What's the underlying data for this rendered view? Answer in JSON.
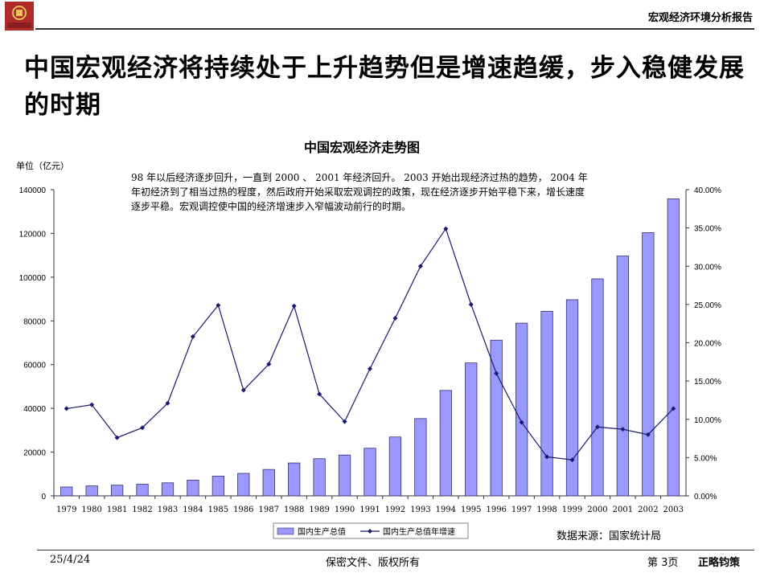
{
  "header": {
    "report_title": "宏观经济环境分析报告",
    "logo_text": "浙商银行"
  },
  "headline": "中国宏观经济将持续处于上升趋势但是增速趋缓，步入稳健发展的时期",
  "chart_data": {
    "type": "bar",
    "title": "中国宏观经济走势图",
    "unit_label": "单位（亿元）",
    "note": "98 年以后经济逐步回升，一直到 2000 、 2001 年经济回升。 2003 开始出现经济过热的趋势， 2004 年年初经济到了相当过热的程度，然后政府开始采取宏观调控的政策，现在经济逐步开始平稳下来，增长速度逐步平稳。宏观调控使中国的经济增速步入窄幅波动前行的时期。",
    "categories": [
      "1979",
      "1980",
      "1981",
      "1982",
      "1983",
      "1984",
      "1985",
      "1986",
      "1987",
      "1988",
      "1989",
      "1990",
      "1991",
      "1992",
      "1993",
      "1994",
      "1995",
      "1996",
      "1997",
      "1998",
      "1999",
      "2000",
      "2001",
      "2002",
      "2003"
    ],
    "series": [
      {
        "name": "国内生产总值",
        "type": "bar",
        "axis": "left",
        "values": [
          4060,
          4550,
          4890,
          5320,
          5960,
          7210,
          9020,
          10280,
          12060,
          15040,
          16990,
          18670,
          21780,
          26920,
          35330,
          48200,
          60790,
          71180,
          78970,
          84400,
          89680,
          99210,
          109660,
          120330,
          135820
        ]
      },
      {
        "name": "国内生产总值年增速",
        "type": "line",
        "axis": "right",
        "values": [
          0.114,
          0.119,
          0.076,
          0.089,
          0.121,
          0.208,
          0.249,
          0.138,
          0.172,
          0.248,
          0.133,
          0.097,
          0.166,
          0.232,
          0.3,
          0.349,
          0.25,
          0.16,
          0.096,
          0.051,
          0.047,
          0.09,
          0.087,
          0.08,
          0.114
        ]
      }
    ],
    "y_left": {
      "min": 0,
      "max": 140000,
      "ticks": [
        "0",
        "20000",
        "40000",
        "60000",
        "80000",
        "100000",
        "120000",
        "140000"
      ]
    },
    "y_right": {
      "min": 0,
      "max": 0.4,
      "ticks": [
        "0.00%",
        "5.00%",
        "10.00%",
        "15.00%",
        "20.00%",
        "25.00%",
        "30.00%",
        "35.00%",
        "40.00%"
      ]
    },
    "legend_position": "bottom",
    "grid": false,
    "colors": {
      "bar_fill": "#9999ff",
      "bar_stroke": "#333366",
      "line": "#1a1a6e"
    }
  },
  "source": "数据来源：国家统计局",
  "footer": {
    "date": "25/4/24",
    "center": "保密文件、版权所有",
    "page": "第 3页",
    "brand": "正略钧策"
  }
}
